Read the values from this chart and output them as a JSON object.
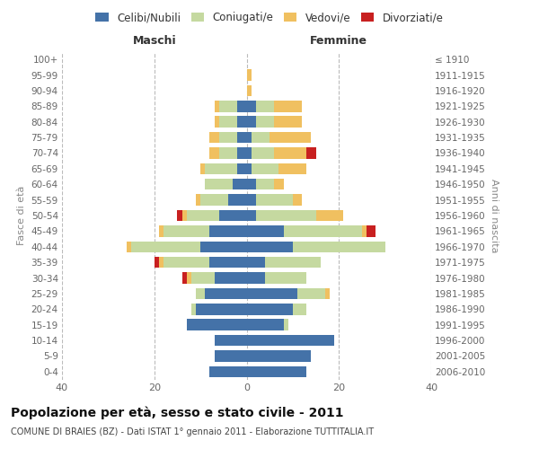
{
  "age_groups": [
    "0-4",
    "5-9",
    "10-14",
    "15-19",
    "20-24",
    "25-29",
    "30-34",
    "35-39",
    "40-44",
    "45-49",
    "50-54",
    "55-59",
    "60-64",
    "65-69",
    "70-74",
    "75-79",
    "80-84",
    "85-89",
    "90-94",
    "95-99",
    "100+"
  ],
  "birth_years": [
    "2006-2010",
    "2001-2005",
    "1996-2000",
    "1991-1995",
    "1986-1990",
    "1981-1985",
    "1976-1980",
    "1971-1975",
    "1966-1970",
    "1961-1965",
    "1956-1960",
    "1951-1955",
    "1946-1950",
    "1941-1945",
    "1936-1940",
    "1931-1935",
    "1926-1930",
    "1921-1925",
    "1916-1920",
    "1911-1915",
    "≤ 1910"
  ],
  "maschi": {
    "celibi": [
      8,
      7,
      7,
      13,
      11,
      9,
      7,
      8,
      10,
      8,
      6,
      4,
      3,
      2,
      2,
      2,
      2,
      2,
      0,
      0,
      0
    ],
    "coniugati": [
      0,
      0,
      0,
      0,
      1,
      2,
      5,
      10,
      15,
      10,
      7,
      6,
      6,
      7,
      4,
      4,
      4,
      4,
      0,
      0,
      0
    ],
    "vedovi": [
      0,
      0,
      0,
      0,
      0,
      0,
      1,
      1,
      1,
      1,
      1,
      1,
      0,
      1,
      2,
      2,
      1,
      1,
      0,
      0,
      0
    ],
    "divorziati": [
      0,
      0,
      0,
      0,
      0,
      0,
      1,
      1,
      0,
      0,
      1,
      0,
      0,
      0,
      0,
      0,
      0,
      0,
      0,
      0,
      0
    ]
  },
  "femmine": {
    "celibi": [
      13,
      14,
      19,
      8,
      10,
      11,
      4,
      4,
      10,
      8,
      2,
      2,
      2,
      1,
      1,
      1,
      2,
      2,
      0,
      0,
      0
    ],
    "coniugati": [
      0,
      0,
      0,
      1,
      3,
      6,
      9,
      12,
      20,
      17,
      13,
      8,
      4,
      6,
      5,
      4,
      4,
      4,
      0,
      0,
      0
    ],
    "vedovi": [
      0,
      0,
      0,
      0,
      0,
      1,
      0,
      0,
      0,
      1,
      6,
      2,
      2,
      6,
      7,
      9,
      6,
      6,
      1,
      1,
      0
    ],
    "divorziati": [
      0,
      0,
      0,
      0,
      0,
      0,
      0,
      0,
      0,
      2,
      0,
      0,
      0,
      0,
      2,
      0,
      0,
      0,
      0,
      0,
      0
    ]
  },
  "colors": {
    "celibi": "#4472a8",
    "coniugati": "#c5d9a0",
    "vedovi": "#f0c060",
    "divorziati": "#c82020"
  },
  "xlim": 40,
  "title": "Popolazione per età, sesso e stato civile - 2011",
  "subtitle": "COMUNE DI BRAIES (BZ) - Dati ISTAT 1° gennaio 2011 - Elaborazione TUTTITALIA.IT",
  "ylabel_left": "Fasce di età",
  "ylabel_right": "Anni di nascita",
  "xlabel_maschi": "Maschi",
  "xlabel_femmine": "Femmine",
  "legend_labels": [
    "Celibi/Nubili",
    "Coniugati/e",
    "Vedovi/e",
    "Divorziati/e"
  ],
  "background_color": "#ffffff",
  "grid_color": "#bbbbbb"
}
